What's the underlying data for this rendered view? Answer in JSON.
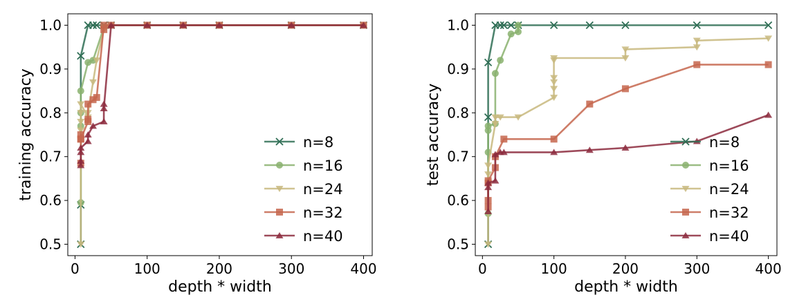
{
  "chart_data": [
    {
      "type": "line",
      "title": "",
      "xlabel": "depth * width",
      "ylabel": "training accuracy",
      "xlim": [
        -10,
        412
      ],
      "ylim": [
        0.474,
        1.026
      ],
      "x_ticks": [
        0,
        100,
        200,
        300,
        400
      ],
      "y_ticks": [
        0.5,
        0.6,
        0.7,
        0.8,
        0.9,
        1.0
      ],
      "x_tick_labels": [
        "0",
        "100",
        "200",
        "300",
        "400"
      ],
      "y_tick_labels": [
        "0.5",
        "0.6",
        "0.7",
        "0.8",
        "0.9",
        "1.0"
      ],
      "grid": false,
      "legend_position": "lower-right",
      "series": [
        {
          "name": "n=8",
          "color": "#2f6e55",
          "marker": "x",
          "x": [
            8,
            8,
            8,
            18,
            25,
            30,
            40,
            50,
            100,
            150,
            200,
            300,
            400
          ],
          "y": [
            0.5,
            0.59,
            0.93,
            1.0,
            1.0,
            1.0,
            1.0,
            1.0,
            1.0,
            1.0,
            1.0,
            1.0,
            1.0
          ]
        },
        {
          "name": "n=16",
          "color": "#8ab16e",
          "marker": "o",
          "x": [
            8,
            8,
            8,
            8,
            18,
            25,
            40,
            50,
            100,
            150,
            200,
            300,
            400
          ],
          "y": [
            0.595,
            0.77,
            0.8,
            0.85,
            0.915,
            0.92,
            0.995,
            1.0,
            1.0,
            1.0,
            1.0,
            1.0,
            1.0
          ]
        },
        {
          "name": "n=24",
          "color": "#c8b87e",
          "marker": "v",
          "x": [
            8,
            8,
            8,
            8,
            8,
            18,
            18,
            25,
            30,
            40,
            50,
            100,
            150,
            200,
            300,
            400
          ],
          "y": [
            0.5,
            0.76,
            0.78,
            0.8,
            0.82,
            0.79,
            0.8,
            0.87,
            0.92,
            0.99,
            1.0,
            1.0,
            1.0,
            1.0,
            1.0,
            1.0
          ]
        },
        {
          "name": "n=32",
          "color": "#c5664e",
          "marker": "s",
          "x": [
            8,
            8,
            8,
            8,
            18,
            18,
            30,
            40,
            50,
            100,
            150,
            200,
            300,
            400
          ],
          "y": [
            0.685,
            0.74,
            0.75,
            0.74,
            0.78,
            0.82,
            0.835,
            1.0,
            1.0,
            1.0,
            1.0,
            1.0,
            1.0,
            1.0
          ],
          "extra_markers": {
            "x": [
              18,
              25,
              40
            ],
            "y": [
              0.785,
              0.83,
              0.99
            ]
          }
        },
        {
          "name": "n=40",
          "color": "#8c2a3d",
          "marker": "^",
          "x": [
            8,
            8,
            8,
            8,
            18,
            18,
            25,
            40,
            40,
            50,
            100,
            150,
            200,
            300,
            400
          ],
          "y": [
            0.68,
            0.69,
            0.71,
            0.72,
            0.735,
            0.75,
            0.77,
            0.78,
            0.81,
            1.0,
            1.0,
            1.0,
            1.0,
            1.0,
            1.0
          ],
          "extra_markers": {
            "x": [
              40
            ],
            "y": [
              0.82
            ]
          }
        }
      ]
    },
    {
      "type": "line",
      "title": "",
      "xlabel": "depth * width",
      "ylabel": "test accuracy",
      "xlim": [
        -10,
        412
      ],
      "ylim": [
        0.474,
        1.026
      ],
      "x_ticks": [
        0,
        100,
        200,
        300,
        400
      ],
      "y_ticks": [
        0.5,
        0.6,
        0.7,
        0.8,
        0.9,
        1.0
      ],
      "x_tick_labels": [
        "0",
        "100",
        "200",
        "300",
        "400"
      ],
      "y_tick_labels": [
        "0.5",
        "0.6",
        "0.7",
        "0.8",
        "0.9",
        "1.0"
      ],
      "grid": false,
      "legend_position": "lower-right",
      "series": [
        {
          "name": "n=8",
          "color": "#2f6e55",
          "marker": "x",
          "x": [
            8,
            8,
            8,
            18,
            25,
            30,
            40,
            50,
            100,
            150,
            200,
            300,
            400
          ],
          "y": [
            0.5,
            0.79,
            0.915,
            1.0,
            1.0,
            1.0,
            1.0,
            1.0,
            1.0,
            1.0,
            1.0,
            1.0,
            1.0
          ]
        },
        {
          "name": "n=16",
          "color": "#8ab16e",
          "marker": "o",
          "x": [
            8,
            8,
            8,
            8,
            18,
            18,
            25,
            40,
            50,
            50
          ],
          "y": [
            0.57,
            0.71,
            0.76,
            0.77,
            0.775,
            0.89,
            0.92,
            0.98,
            0.985,
            1.0
          ]
        },
        {
          "name": "n=24",
          "color": "#c8b87e",
          "marker": "v",
          "x": [
            8,
            8,
            8,
            8,
            18,
            18,
            25,
            50,
            100,
            100,
            100,
            100,
            100,
            100,
            200,
            200,
            300,
            300,
            400
          ],
          "y": [
            0.5,
            0.64,
            0.66,
            0.68,
            0.775,
            0.79,
            0.79,
            0.79,
            0.835,
            0.855,
            0.87,
            0.88,
            0.92,
            0.925,
            0.925,
            0.945,
            0.95,
            0.965,
            0.97
          ]
        },
        {
          "name": "n=32",
          "color": "#c5664e",
          "marker": "s",
          "x": [
            8,
            8,
            8,
            8,
            18,
            18,
            30,
            100,
            150,
            200,
            300,
            400
          ],
          "y": [
            0.585,
            0.6,
            0.64,
            0.645,
            0.675,
            0.7,
            0.74,
            0.74,
            0.82,
            0.855,
            0.91,
            0.91
          ]
        },
        {
          "name": "n=40",
          "color": "#8c2a3d",
          "marker": "^",
          "x": [
            8,
            8,
            8,
            18,
            18,
            25,
            30,
            100,
            150,
            200,
            300,
            400
          ],
          "y": [
            0.575,
            0.63,
            0.64,
            0.645,
            0.705,
            0.71,
            0.71,
            0.71,
            0.715,
            0.72,
            0.735,
            0.795
          ]
        }
      ]
    }
  ]
}
